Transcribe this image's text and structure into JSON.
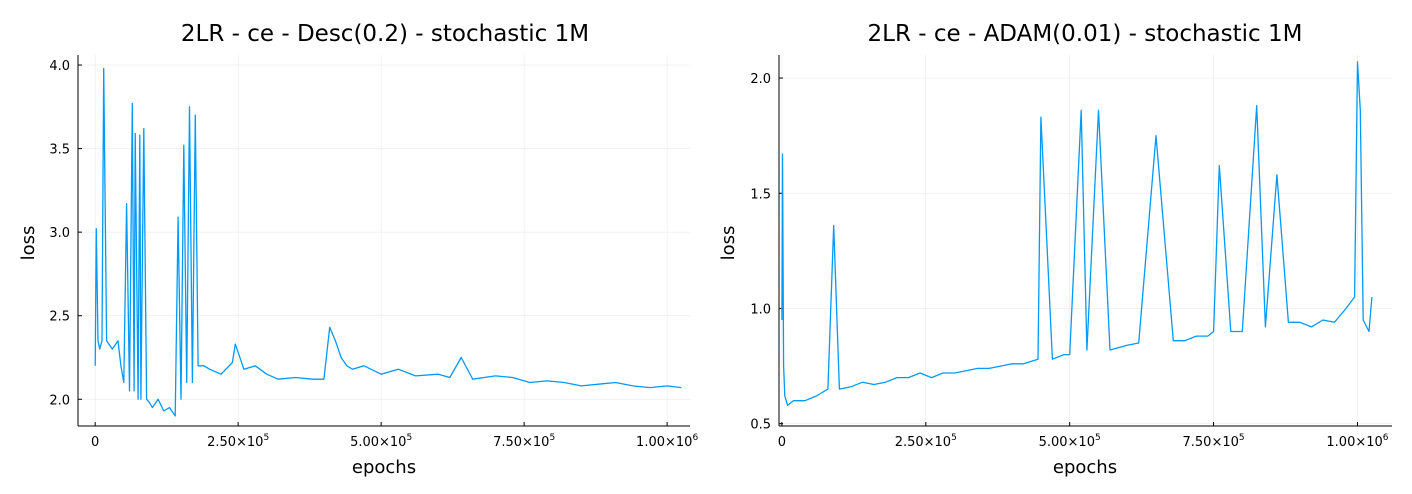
{
  "chart_data": [
    {
      "type": "line",
      "title": "2LR - ce - Desc(0.2) - stochastic 1M",
      "xlabel": "epochs",
      "ylabel": "loss",
      "xlim": [
        -30000,
        1040000
      ],
      "ylim": [
        1.84,
        4.06
      ],
      "grid": true,
      "legend": "none",
      "color": "#009AFA",
      "xticks": [
        {
          "value": 0,
          "label": "0",
          "exp": ""
        },
        {
          "value": 250000,
          "label": "2.50×10",
          "exp": "5"
        },
        {
          "value": 500000,
          "label": "5.00×10",
          "exp": "5"
        },
        {
          "value": 750000,
          "label": "7.50×10",
          "exp": "5"
        },
        {
          "value": 1000000,
          "label": "1.00×10",
          "exp": "6"
        }
      ],
      "yticks": [
        {
          "value": 2.0,
          "label": "2.0"
        },
        {
          "value": 2.5,
          "label": "2.5"
        },
        {
          "value": 3.0,
          "label": "3.0"
        },
        {
          "value": 3.5,
          "label": "3.5"
        },
        {
          "value": 4.0,
          "label": "4.0"
        }
      ],
      "series": [
        {
          "x": [
            0,
            2000,
            5000,
            8000,
            12000,
            15000,
            20000,
            30000,
            40000,
            45000,
            50000,
            55000,
            60000,
            65000,
            68000,
            70000,
            75000,
            78000,
            80000,
            85000,
            90000,
            95000,
            100000,
            110000,
            120000,
            130000,
            140000,
            145000,
            150000,
            155000,
            160000,
            165000,
            170000,
            175000,
            180000,
            190000,
            200000,
            220000,
            240000,
            245000,
            260000,
            280000,
            300000,
            320000,
            350000,
            380000,
            400000,
            410000,
            420000,
            430000,
            440000,
            450000,
            470000,
            500000,
            530000,
            560000,
            600000,
            620000,
            640000,
            660000,
            700000,
            730000,
            760000,
            790000,
            820000,
            850000,
            880000,
            910000,
            940000,
            970000,
            1000000,
            1025000
          ],
          "y": [
            2.2,
            3.02,
            2.35,
            2.3,
            2.35,
            3.98,
            2.35,
            2.3,
            2.35,
            2.2,
            2.1,
            3.17,
            2.05,
            3.77,
            2.05,
            3.59,
            2.0,
            3.58,
            2.0,
            3.62,
            2.0,
            1.98,
            1.95,
            2.0,
            1.93,
            1.95,
            1.9,
            3.09,
            2.0,
            3.52,
            2.1,
            3.75,
            2.1,
            3.7,
            2.2,
            2.2,
            2.18,
            2.15,
            2.22,
            2.33,
            2.18,
            2.2,
            2.15,
            2.12,
            2.13,
            2.12,
            2.12,
            2.43,
            2.35,
            2.25,
            2.2,
            2.18,
            2.2,
            2.15,
            2.18,
            2.14,
            2.15,
            2.13,
            2.25,
            2.12,
            2.14,
            2.13,
            2.1,
            2.11,
            2.1,
            2.08,
            2.09,
            2.1,
            2.08,
            2.07,
            2.08,
            2.07
          ]
        }
      ]
    },
    {
      "type": "line",
      "title": "2LR - ce - ADAM(0.01) - stochastic 1M",
      "xlabel": "epochs",
      "ylabel": "loss",
      "xlim": [
        -5000,
        1060000
      ],
      "ylim": [
        0.49,
        2.1
      ],
      "grid": true,
      "legend": "none",
      "color": "#009AFA",
      "xticks": [
        {
          "value": 0,
          "label": "0",
          "exp": ""
        },
        {
          "value": 250000,
          "label": "2.50×10",
          "exp": "5"
        },
        {
          "value": 500000,
          "label": "5.00×10",
          "exp": "5"
        },
        {
          "value": 750000,
          "label": "7.50×10",
          "exp": "5"
        },
        {
          "value": 1000000,
          "label": "1.00×10",
          "exp": "6"
        }
      ],
      "yticks": [
        {
          "value": 0.5,
          "label": "0.5"
        },
        {
          "value": 1.0,
          "label": "1.0"
        },
        {
          "value": 1.5,
          "label": "1.5"
        },
        {
          "value": 2.0,
          "label": "2.0"
        }
      ],
      "series": [
        {
          "x": [
            0,
            1000,
            3000,
            5000,
            10000,
            20000,
            40000,
            60000,
            80000,
            90000,
            100000,
            120000,
            140000,
            160000,
            180000,
            200000,
            220000,
            240000,
            260000,
            280000,
            300000,
            320000,
            340000,
            360000,
            380000,
            400000,
            420000,
            445000,
            450000,
            470000,
            490000,
            500000,
            520000,
            530000,
            550000,
            570000,
            600000,
            620000,
            650000,
            680000,
            700000,
            720000,
            740000,
            750000,
            760000,
            780000,
            800000,
            825000,
            840000,
            860000,
            880000,
            900000,
            920000,
            940000,
            960000,
            980000,
            995000,
            1000000,
            1005000,
            1010000,
            1020000,
            1025000
          ],
          "y": [
            0.95,
            1.67,
            0.75,
            0.62,
            0.58,
            0.6,
            0.6,
            0.62,
            0.65,
            1.36,
            0.65,
            0.66,
            0.68,
            0.67,
            0.68,
            0.7,
            0.7,
            0.72,
            0.7,
            0.72,
            0.72,
            0.73,
            0.74,
            0.74,
            0.75,
            0.76,
            0.76,
            0.78,
            1.83,
            0.78,
            0.8,
            0.8,
            1.86,
            0.82,
            1.86,
            0.82,
            0.84,
            0.85,
            1.75,
            0.86,
            0.86,
            0.88,
            0.88,
            0.9,
            1.62,
            0.9,
            0.9,
            1.88,
            0.92,
            1.58,
            0.94,
            0.94,
            0.92,
            0.95,
            0.94,
            1.0,
            1.05,
            2.07,
            1.86,
            0.95,
            0.9,
            1.05
          ]
        }
      ]
    }
  ]
}
